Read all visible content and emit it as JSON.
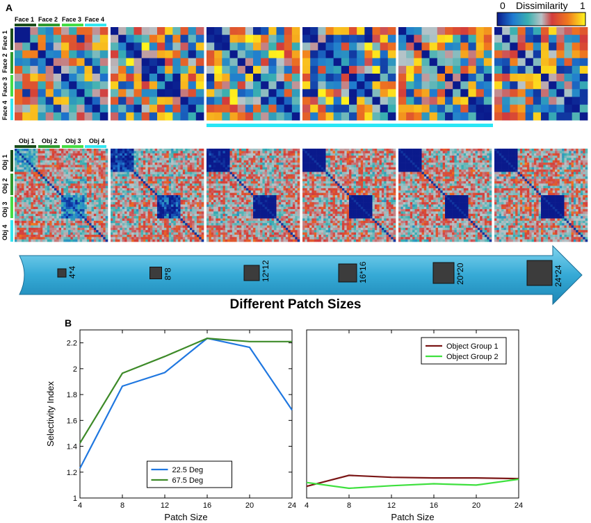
{
  "panel_a": {
    "label": "A",
    "colorbar": {
      "min_label": "0",
      "title": "Dissimilarity",
      "max_label": "1"
    },
    "face_labels": [
      "Face 1",
      "Face 2",
      "Face 3",
      "Face 4"
    ],
    "object_labels": [
      "Obj 1",
      "Obj 2",
      "Obj 3",
      "Obj 4"
    ],
    "group_colors": [
      "#1a4d1a",
      "#2e9a2e",
      "#44dd44",
      "#33e6f0"
    ],
    "patch_sizes": [
      "4*4",
      "8*8",
      "12*12",
      "16*16",
      "20*20",
      "24*24"
    ],
    "arrow_title": "Different Patch Sizes",
    "arrow_color": "#3fb8dc",
    "highlight_color": "#29e6f5"
  },
  "chart_data": [
    {
      "type": "line",
      "panel": "B",
      "title": "",
      "xlabel": "Patch Size",
      "ylabel": "Selectivity Index",
      "x": [
        4,
        8,
        12,
        16,
        20,
        24
      ],
      "xlim": [
        4,
        24
      ],
      "ylim": [
        1,
        2.3
      ],
      "xticks": [
        "4",
        "8",
        "12",
        "16",
        "20",
        "24"
      ],
      "yticks": [
        "1",
        "1.2",
        "1.4",
        "1.6",
        "1.8",
        "2",
        "2.2"
      ],
      "legend_position": "bottom-center",
      "series": [
        {
          "name": "22.5 Deg",
          "color": "#1f77e0",
          "values": [
            1.23,
            1.865,
            1.97,
            2.235,
            2.165,
            1.68
          ]
        },
        {
          "name": "67.5 Deg",
          "color": "#3d8a28",
          "values": [
            1.425,
            1.965,
            2.095,
            2.235,
            2.21,
            2.21
          ]
        }
      ]
    },
    {
      "type": "line",
      "panel": "B-right",
      "title": "",
      "xlabel": "Patch Size",
      "ylabel": "",
      "x": [
        4,
        8,
        12,
        16,
        20,
        24
      ],
      "xlim": [
        4,
        24
      ],
      "ylim": [
        1,
        2.3
      ],
      "xticks": [
        "4",
        "8",
        "12",
        "16",
        "20",
        "24"
      ],
      "legend_position": "top-right",
      "series": [
        {
          "name": "Object Group 1",
          "color": "#7a1515",
          "values": [
            1.09,
            1.175,
            1.16,
            1.155,
            1.155,
            1.15
          ]
        },
        {
          "name": "Object Group 2",
          "color": "#3ee03e",
          "values": [
            1.12,
            1.075,
            1.095,
            1.11,
            1.1,
            1.145
          ]
        }
      ]
    }
  ]
}
